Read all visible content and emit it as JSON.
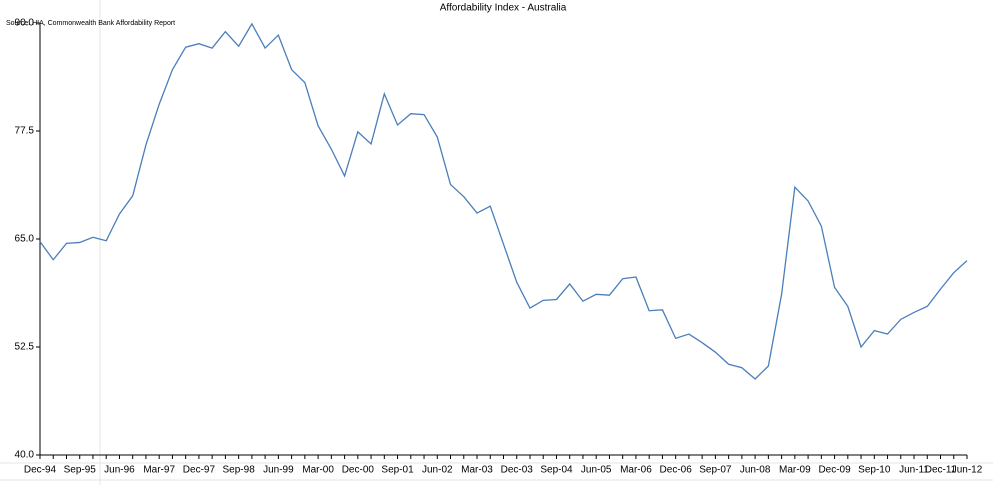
{
  "chart_data": {
    "type": "line",
    "title": "Affordability Index - Australia",
    "subtitle": "Source: HIA, Commonwealth Bank Affordability Report",
    "categories": [
      "Dec-94",
      null,
      null,
      "Sep-95",
      null,
      null,
      "Jun-96",
      null,
      null,
      "Mar-97",
      null,
      null,
      "Dec-97",
      null,
      null,
      "Sep-98",
      null,
      null,
      "Jun-99",
      null,
      null,
      "Mar-00",
      null,
      null,
      "Dec-00",
      null,
      null,
      "Sep-01",
      null,
      null,
      "Jun-02",
      null,
      null,
      "Mar-03",
      null,
      null,
      "Dec-03",
      null,
      null,
      "Sep-04",
      null,
      null,
      "Jun-05",
      null,
      null,
      "Mar-06",
      null,
      null,
      "Dec-06",
      null,
      null,
      "Sep-07",
      null,
      null,
      "Jun-08",
      null,
      null,
      "Mar-09",
      null,
      null,
      "Dec-09",
      null,
      null,
      "Sep-10",
      null,
      null,
      "Jun-11",
      null,
      "Dec-11",
      null,
      "Jun-12"
    ],
    "series": [
      {
        "name": "Affordability Index",
        "color": "#4a7ebb",
        "values": [
          64.7,
          62.6,
          64.5,
          64.6,
          65.2,
          64.8,
          67.9,
          70.0,
          75.9,
          80.6,
          84.6,
          87.2,
          87.6,
          87.1,
          89.0,
          87.3,
          89.9,
          87.1,
          88.6,
          84.6,
          83.1,
          78.1,
          75.4,
          72.3,
          77.4,
          76.0,
          81.8,
          78.2,
          79.5,
          79.4,
          76.8,
          71.3,
          69.9,
          68.0,
          68.8,
          64.4,
          60.0,
          57.0,
          57.9,
          58.0,
          59.8,
          57.8,
          58.6,
          58.5,
          60.4,
          60.6,
          56.7,
          56.8,
          53.5,
          54.0,
          53.0,
          51.9,
          50.5,
          50.1,
          48.8,
          50.3,
          58.6,
          71.0,
          69.4,
          66.5,
          59.4,
          57.2,
          52.5,
          54.4,
          54.0,
          55.7,
          56.5,
          57.2,
          59.2,
          61.1,
          62.5
        ]
      }
    ],
    "ylim": [
      40,
      90
    ],
    "yticks": [
      {
        "value": 40,
        "label": "40.0"
      },
      52.5,
      {
        "value": 65,
        "label": "65.0"
      },
      77.5,
      {
        "value": 90,
        "label": "90.0"
      }
    ]
  }
}
